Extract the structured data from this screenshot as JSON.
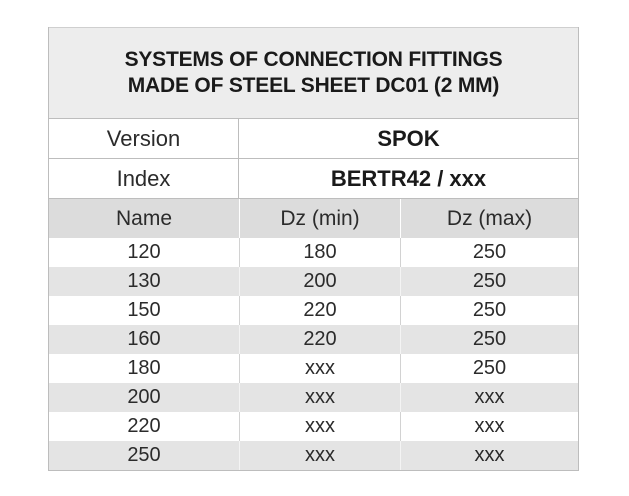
{
  "title": {
    "line1": "SYSTEMS OF CONNECTION FITTINGS",
    "line2": "MADE OF STEEL SHEET DC01 (2 MM)"
  },
  "info": {
    "version_label": "Version",
    "version_value": "SPOK",
    "index_label": "Index",
    "index_value": "BERTR42 / xxx"
  },
  "columns": [
    "Name",
    "Dz (min)",
    "Dz (max)"
  ],
  "rows": [
    [
      "120",
      "180",
      "250"
    ],
    [
      "130",
      "200",
      "250"
    ],
    [
      "150",
      "220",
      "250"
    ],
    [
      "160",
      "220",
      "250"
    ],
    [
      "180",
      "xxx",
      "250"
    ],
    [
      "200",
      "xxx",
      "xxx"
    ],
    [
      "220",
      "xxx",
      "xxx"
    ],
    [
      "250",
      "xxx",
      "xxx"
    ]
  ]
}
